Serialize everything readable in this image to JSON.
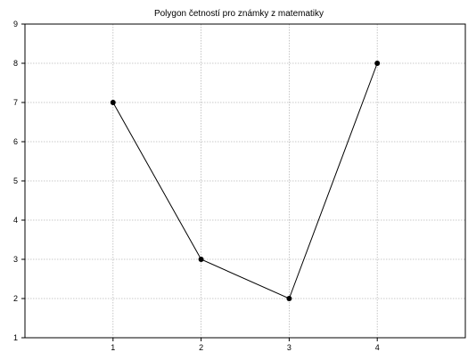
{
  "chart_data": {
    "type": "line",
    "title": "Polygon četností pro známky z matematiky",
    "xlabel": "",
    "ylabel": "",
    "x": [
      1,
      2,
      3,
      4
    ],
    "xlim": [
      0,
      5
    ],
    "ylim": [
      1,
      9
    ],
    "xticks": [
      1,
      2,
      3,
      4
    ],
    "yticks": [
      1,
      2,
      3,
      4,
      5,
      6,
      7,
      8,
      9
    ],
    "grid": true,
    "series": [
      {
        "values": [
          7,
          3,
          2,
          8
        ]
      }
    ]
  }
}
